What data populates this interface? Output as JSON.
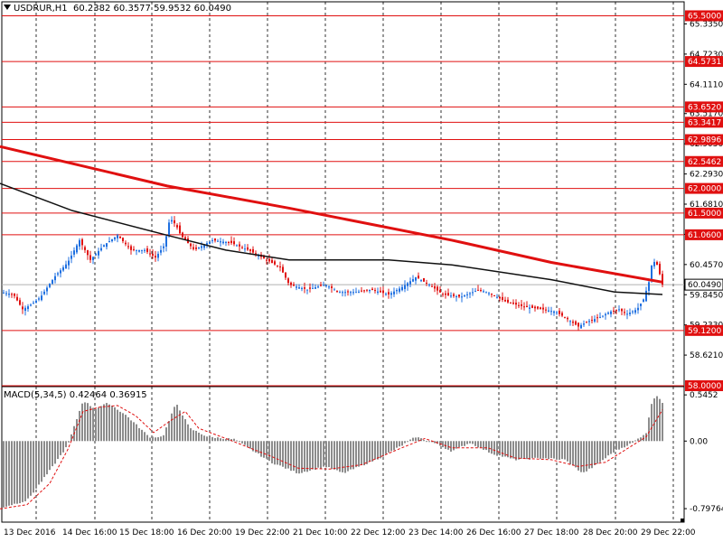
{
  "header": {
    "symbol_tf": "USDRUR,H1",
    "ohlc": "60.2382 60.3577 59.9532 60.0490"
  },
  "macd_header": {
    "label": "MACD(5,34,5)",
    "values": "0.42464 0.36915"
  },
  "colors": {
    "bull": "#1e6fe0",
    "bear": "#e01010",
    "ma_fast": "#e01010",
    "ma_slow": "#111111",
    "level": "#e01010",
    "grid": "#000000",
    "hist": "#8c8c8c",
    "signal": "#e01010"
  },
  "chart_data": [
    {
      "type": "candlestick",
      "title": "USDRUR,H1",
      "price_axis_ticks": [
        "65.3350",
        "64.7230",
        "64.1110",
        "63.5170",
        "62.9050",
        "62.2930",
        "61.6810",
        "61.0690",
        "60.4570",
        "59.8450",
        "59.2330",
        "58.6210"
      ],
      "ylim": [
        58.0,
        65.6
      ],
      "x_ticks": [
        "13 Dec 2016",
        "14 Dec 16:00",
        "15 Dec 18:00",
        "16 Dec 20:00",
        "19 Dec 22:00",
        "21 Dec 10:00",
        "22 Dec 12:00",
        "23 Dec 14:00",
        "26 Dec 16:00",
        "27 Dec 18:00",
        "28 Dec 20:00",
        "29 Dec 22:00"
      ],
      "horizontal_levels": [
        {
          "value": 65.5,
          "label": "65.5000"
        },
        {
          "value": 64.5731,
          "label": "64.5731"
        },
        {
          "value": 63.652,
          "label": "63.6520"
        },
        {
          "value": 63.3417,
          "label": "63.3417"
        },
        {
          "value": 62.9896,
          "label": "62.9896"
        },
        {
          "value": 62.5462,
          "label": "62.5462"
        },
        {
          "value": 62.0,
          "label": "62.0000"
        },
        {
          "value": 61.5,
          "label": "61.5000"
        },
        {
          "value": 61.06,
          "label": "61.0600"
        },
        {
          "value": 59.12,
          "label": "59.1200"
        },
        {
          "value": 58.0,
          "label": "58.0000"
        }
      ],
      "current_price": {
        "value": 60.049,
        "label": "60.0490"
      },
      "moving_average_red": [
        [
          0,
          62.85
        ],
        [
          185,
          62.05
        ],
        [
          320,
          61.6
        ],
        [
          500,
          60.95
        ],
        [
          610,
          60.5
        ],
        [
          733,
          60.1
        ]
      ],
      "moving_average_black": [
        [
          0,
          62.1
        ],
        [
          80,
          61.55
        ],
        [
          185,
          61.05
        ],
        [
          250,
          60.75
        ],
        [
          320,
          60.55
        ],
        [
          430,
          60.55
        ],
        [
          500,
          60.45
        ],
        [
          610,
          60.15
        ],
        [
          680,
          59.9
        ],
        [
          733,
          59.85
        ]
      ],
      "price_path": [
        [
          0,
          59.9
        ],
        [
          15,
          59.85
        ],
        [
          25,
          59.55
        ],
        [
          35,
          59.65
        ],
        [
          45,
          59.8
        ],
        [
          60,
          60.2
        ],
        [
          75,
          60.5
        ],
        [
          88,
          60.95
        ],
        [
          100,
          60.55
        ],
        [
          115,
          60.85
        ],
        [
          130,
          61.05
        ],
        [
          145,
          60.75
        ],
        [
          160,
          60.75
        ],
        [
          172,
          60.6
        ],
        [
          182,
          60.85
        ],
        [
          188,
          61.4
        ],
        [
          195,
          61.25
        ],
        [
          200,
          61.05
        ],
        [
          215,
          60.75
        ],
        [
          235,
          60.95
        ],
        [
          255,
          60.9
        ],
        [
          275,
          60.75
        ],
        [
          295,
          60.55
        ],
        [
          310,
          60.4
        ],
        [
          320,
          60.05
        ],
        [
          340,
          59.95
        ],
        [
          360,
          60.05
        ],
        [
          375,
          59.9
        ],
        [
          395,
          59.9
        ],
        [
          410,
          59.95
        ],
        [
          430,
          59.85
        ],
        [
          445,
          60.0
        ],
        [
          460,
          60.2
        ],
        [
          475,
          60.05
        ],
        [
          490,
          59.85
        ],
        [
          510,
          59.8
        ],
        [
          530,
          59.95
        ],
        [
          545,
          59.85
        ],
        [
          560,
          59.7
        ],
        [
          580,
          59.6
        ],
        [
          600,
          59.55
        ],
        [
          615,
          59.5
        ],
        [
          628,
          59.35
        ],
        [
          640,
          59.2
        ],
        [
          650,
          59.3
        ],
        [
          665,
          59.4
        ],
        [
          675,
          59.5
        ],
        [
          685,
          59.55
        ],
        [
          693,
          59.45
        ],
        [
          705,
          59.55
        ],
        [
          712,
          59.75
        ],
        [
          718,
          60.1
        ],
        [
          722,
          60.55
        ],
        [
          727,
          60.45
        ],
        [
          731,
          60.2
        ],
        [
          733,
          60.05
        ]
      ],
      "macd_panel": {
        "label": "MACD(5,34,5)",
        "axis_ticks": [
          "0.5452",
          "0.00",
          "-0.79764"
        ],
        "ylim": [
          -0.85,
          0.6
        ],
        "histogram": [
          [
            0,
            -0.79
          ],
          [
            30,
            -0.7
          ],
          [
            55,
            -0.35
          ],
          [
            75,
            -0.05
          ],
          [
            92,
            0.48
          ],
          [
            105,
            0.38
          ],
          [
            120,
            0.45
          ],
          [
            140,
            0.3
          ],
          [
            165,
            0.05
          ],
          [
            180,
            0.05
          ],
          [
            195,
            0.45
          ],
          [
            210,
            0.15
          ],
          [
            230,
            0.05
          ],
          [
            260,
            0.02
          ],
          [
            300,
            -0.25
          ],
          [
            330,
            -0.38
          ],
          [
            360,
            -0.3
          ],
          [
            380,
            -0.38
          ],
          [
            420,
            -0.2
          ],
          [
            445,
            -0.05
          ],
          [
            460,
            0.05
          ],
          [
            480,
            -0.02
          ],
          [
            500,
            -0.12
          ],
          [
            520,
            -0.02
          ],
          [
            545,
            -0.15
          ],
          [
            570,
            -0.22
          ],
          [
            600,
            -0.2
          ],
          [
            625,
            -0.22
          ],
          [
            645,
            -0.38
          ],
          [
            660,
            -0.28
          ],
          [
            680,
            -0.12
          ],
          [
            700,
            -0.02
          ],
          [
            715,
            0.1
          ],
          [
            722,
            0.5
          ],
          [
            728,
            0.54
          ],
          [
            733,
            0.45
          ]
        ],
        "signal": [
          [
            0,
            -0.8
          ],
          [
            30,
            -0.75
          ],
          [
            55,
            -0.5
          ],
          [
            75,
            -0.1
          ],
          [
            92,
            0.35
          ],
          [
            110,
            0.4
          ],
          [
            130,
            0.42
          ],
          [
            150,
            0.3
          ],
          [
            170,
            0.1
          ],
          [
            190,
            0.25
          ],
          [
            205,
            0.35
          ],
          [
            220,
            0.15
          ],
          [
            250,
            0.03
          ],
          [
            300,
            -0.18
          ],
          [
            330,
            -0.32
          ],
          [
            365,
            -0.33
          ],
          [
            400,
            -0.28
          ],
          [
            440,
            -0.1
          ],
          [
            470,
            0.03
          ],
          [
            500,
            -0.08
          ],
          [
            540,
            -0.08
          ],
          [
            570,
            -0.2
          ],
          [
            610,
            -0.22
          ],
          [
            640,
            -0.3
          ],
          [
            670,
            -0.25
          ],
          [
            700,
            -0.05
          ],
          [
            715,
            0.05
          ],
          [
            733,
            0.37
          ]
        ]
      }
    }
  ]
}
